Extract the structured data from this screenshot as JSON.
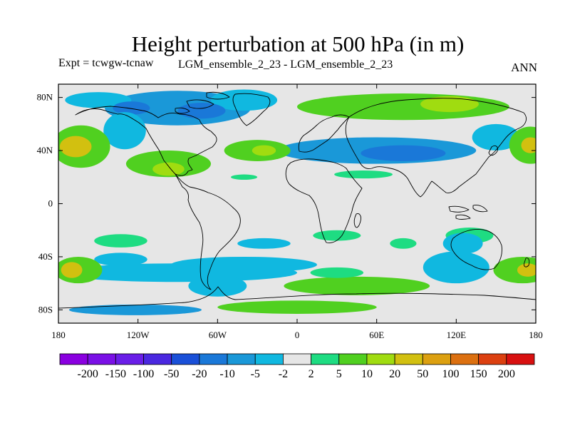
{
  "title": "Height perturbation at 500 hPa (in m)",
  "subtitle_left": "Expt = tcwgw-tcnaw",
  "subtitle_center": "LGM_ensemble_2_23 - LGM_ensemble_2_23",
  "subtitle_right": "ANN",
  "axes": {
    "lon_ticks": [
      {
        "value": -180,
        "label": "180"
      },
      {
        "value": -120,
        "label": "120W"
      },
      {
        "value": -60,
        "label": "60W"
      },
      {
        "value": 0,
        "label": "0"
      },
      {
        "value": 60,
        "label": "60E"
      },
      {
        "value": 120,
        "label": "120E"
      },
      {
        "value": 180,
        "label": "180"
      }
    ],
    "lat_ticks": [
      {
        "value": 80,
        "label": "80N"
      },
      {
        "value": 40,
        "label": "40N"
      },
      {
        "value": 0,
        "label": "0"
      },
      {
        "value": -40,
        "label": "40S"
      },
      {
        "value": -80,
        "label": "80S"
      }
    ],
    "lon_range": [
      -180,
      180
    ],
    "lat_range": [
      -90,
      90
    ]
  },
  "colorbar": {
    "colors": [
      "#8a00e0",
      "#7a10e6",
      "#6a1ee8",
      "#4a28e0",
      "#1a50d8",
      "#1a78d8",
      "#1a98d8",
      "#10b8e0",
      "#e6e6e6",
      "#1edc82",
      "#50d020",
      "#a0dc10",
      "#d2c010",
      "#dca010",
      "#dc7010",
      "#dc4010",
      "#d81010"
    ],
    "labels": [
      "-200",
      "-150",
      "-100",
      "-50",
      "-20",
      "-10",
      "-5",
      "-2",
      "2",
      "5",
      "10",
      "20",
      "50",
      "100",
      "150",
      "200"
    ]
  },
  "chart_data": {
    "type": "heatmap",
    "variable": "Height perturbation at 500 hPa",
    "units": "m",
    "levels": [
      -200,
      -150,
      -100,
      -50,
      -20,
      -10,
      -5,
      -2,
      2,
      5,
      10,
      20,
      50,
      100,
      150,
      200
    ],
    "features": [
      {
        "lon": -90,
        "lat": 72,
        "value": -8,
        "rx": 55,
        "ry": 13
      },
      {
        "lon": -150,
        "lat": 78,
        "value": -4,
        "rx": 25,
        "ry": 6
      },
      {
        "lon": -40,
        "lat": 78,
        "value": -4,
        "rx": 25,
        "ry": 8
      },
      {
        "lon": -72,
        "lat": 70,
        "value": -15,
        "rx": 18,
        "ry": 6
      },
      {
        "lon": -125,
        "lat": 72,
        "value": -15,
        "rx": 14,
        "ry": 5
      },
      {
        "lon": -130,
        "lat": 55,
        "value": -4,
        "rx": 16,
        "ry": 14
      },
      {
        "lon": 60,
        "lat": 40,
        "value": -6,
        "rx": 75,
        "ry": 10
      },
      {
        "lon": 80,
        "lat": 38,
        "value": -14,
        "rx": 32,
        "ry": 6
      },
      {
        "lon": 150,
        "lat": 50,
        "value": -4,
        "rx": 18,
        "ry": 10
      },
      {
        "lon": 80,
        "lat": 73,
        "value": 5,
        "rx": 80,
        "ry": 10
      },
      {
        "lon": 25,
        "lat": 75,
        "value": 8,
        "rx": 14,
        "ry": 5
      },
      {
        "lon": 115,
        "lat": 75,
        "value": 12,
        "rx": 22,
        "ry": 6
      },
      {
        "lon": -163,
        "lat": 43,
        "value": 8,
        "rx": 22,
        "ry": 16
      },
      {
        "lon": -167,
        "lat": 43,
        "value": 20,
        "rx": 12,
        "ry": 8
      },
      {
        "lon": -170,
        "lat": 43,
        "value": 40,
        "rx": 6,
        "ry": 4
      },
      {
        "lon": 176,
        "lat": 44,
        "value": 8,
        "rx": 16,
        "ry": 14
      },
      {
        "lon": 176,
        "lat": 44,
        "value": 25,
        "rx": 7,
        "ry": 6
      },
      {
        "lon": -30,
        "lat": 40,
        "value": 5,
        "rx": 25,
        "ry": 8
      },
      {
        "lon": -25,
        "lat": 40,
        "value": 12,
        "rx": 9,
        "ry": 4
      },
      {
        "lon": -97,
        "lat": 30,
        "value": 5,
        "rx": 32,
        "ry": 10
      },
      {
        "lon": -97,
        "lat": 26,
        "value": 12,
        "rx": 12,
        "ry": 5
      },
      {
        "lon": -40,
        "lat": 20,
        "value": 3,
        "rx": 10,
        "ry": 2
      },
      {
        "lon": 50,
        "lat": 22,
        "value": 3,
        "rx": 22,
        "ry": 3
      },
      {
        "lon": -133,
        "lat": -28,
        "value": 3,
        "rx": 20,
        "ry": 5
      },
      {
        "lon": -133,
        "lat": -42,
        "value": -3,
        "rx": 20,
        "ry": 5
      },
      {
        "lon": -25,
        "lat": -30,
        "value": -5,
        "rx": 20,
        "ry": 4
      },
      {
        "lon": 30,
        "lat": -24,
        "value": 3,
        "rx": 18,
        "ry": 4
      },
      {
        "lon": 80,
        "lat": -30,
        "value": 3,
        "rx": 10,
        "ry": 4
      },
      {
        "lon": 130,
        "lat": -24,
        "value": 3,
        "rx": 18,
        "ry": 6
      },
      {
        "lon": -90,
        "lat": -52,
        "value": -5,
        "rx": 90,
        "ry": 7
      },
      {
        "lon": -40,
        "lat": -46,
        "value": -5,
        "rx": 55,
        "ry": 6
      },
      {
        "lon": -60,
        "lat": -62,
        "value": -5,
        "rx": 22,
        "ry": 8
      },
      {
        "lon": -122,
        "lat": -80,
        "value": -6,
        "rx": 50,
        "ry": 4
      },
      {
        "lon": 0,
        "lat": -78,
        "value": 5,
        "rx": 60,
        "ry": 5
      },
      {
        "lon": 45,
        "lat": -62,
        "value": 5,
        "rx": 55,
        "ry": 7
      },
      {
        "lon": 30,
        "lat": -52,
        "value": 3,
        "rx": 20,
        "ry": 4
      },
      {
        "lon": 120,
        "lat": -48,
        "value": -5,
        "rx": 25,
        "ry": 12
      },
      {
        "lon": 125,
        "lat": -30,
        "value": -3,
        "rx": 15,
        "ry": 8
      },
      {
        "lon": 170,
        "lat": -50,
        "value": 8,
        "rx": 22,
        "ry": 10
      },
      {
        "lon": 174,
        "lat": -50,
        "value": 20,
        "rx": 8,
        "ry": 5
      },
      {
        "lon": -165,
        "lat": -50,
        "value": 8,
        "rx": 18,
        "ry": 10
      },
      {
        "lon": -170,
        "lat": -50,
        "value": 25,
        "rx": 8,
        "ry": 6
      },
      {
        "lon": -170,
        "lat": -50,
        "value": 40,
        "rx": 5,
        "ry": 3
      }
    ]
  }
}
